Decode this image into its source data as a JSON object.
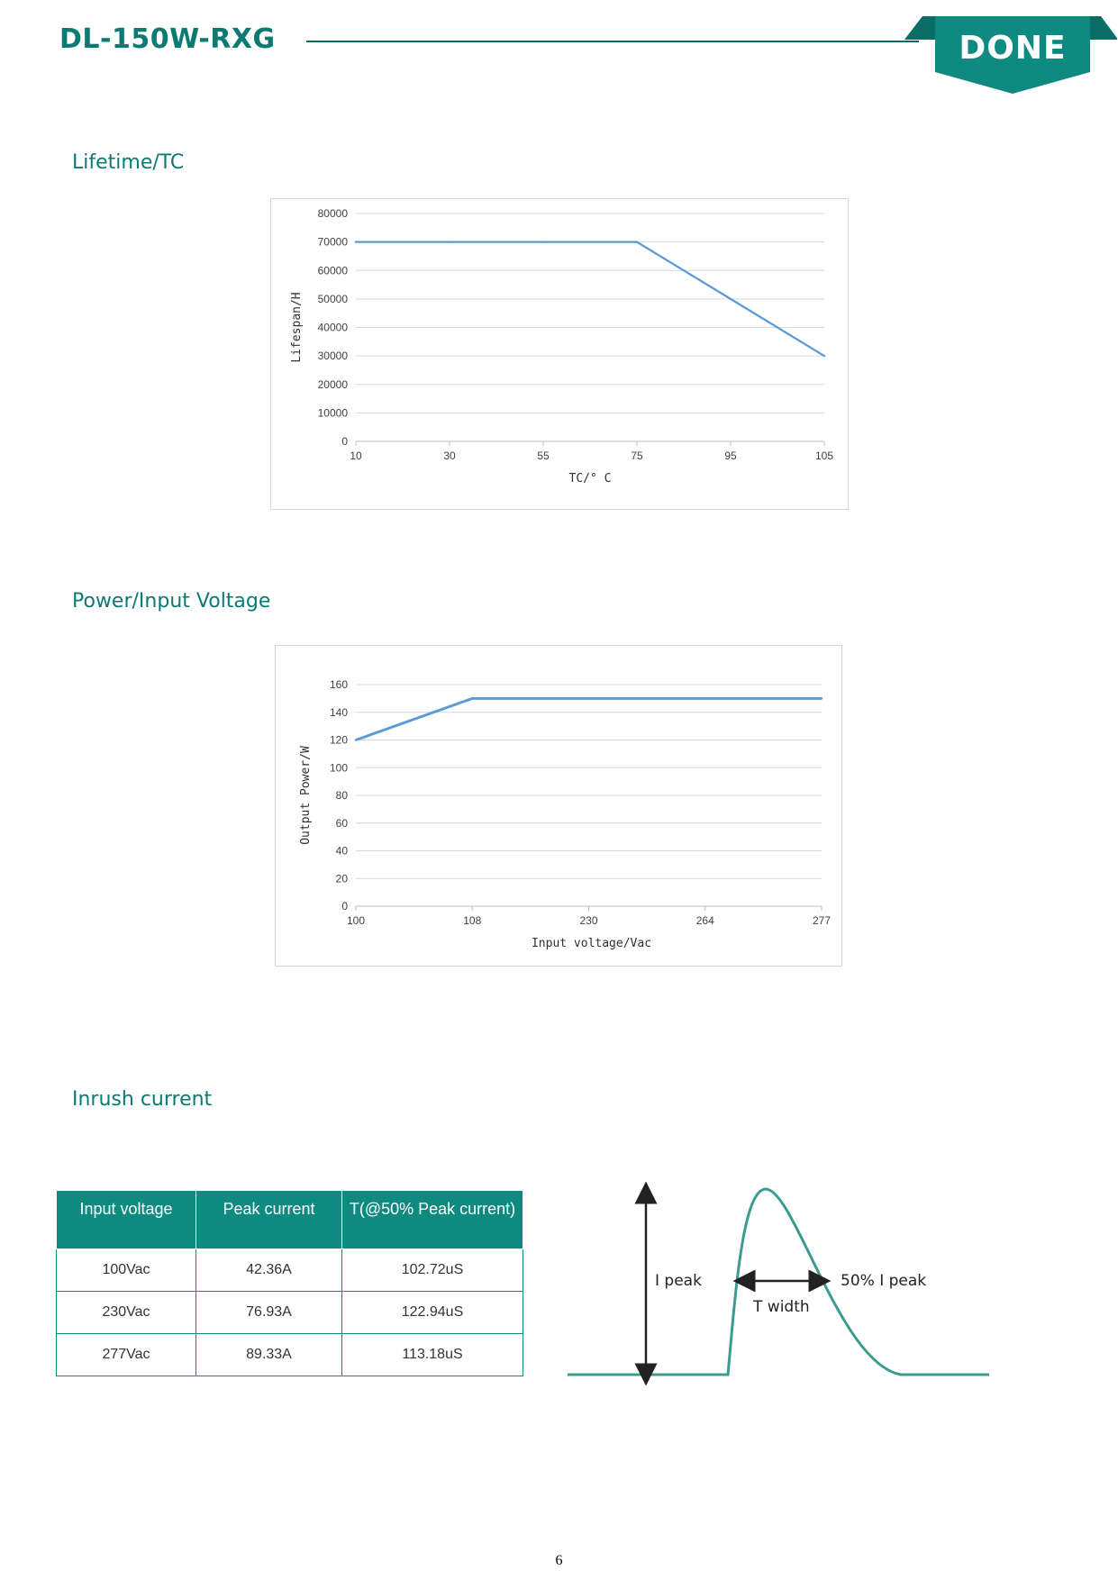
{
  "header": {
    "model": "DL-150W-RXG",
    "logo_text": "DONE",
    "brand_color": "#0e8a80"
  },
  "sections": {
    "lifetime": "Lifetime/TC",
    "power": "Power/Input Voltage",
    "inrush": "Inrush current"
  },
  "chart_data": [
    {
      "type": "line",
      "title": "",
      "xlabel": "TC/° C",
      "ylabel": "Lifespan/H",
      "categories": [
        "10",
        "30",
        "55",
        "75",
        "95",
        "105"
      ],
      "y_ticks": [
        "80000",
        "70000",
        "60000",
        "50000",
        "40000",
        "30000",
        "20000",
        "10000",
        "0"
      ],
      "ylim": [
        0,
        80000
      ],
      "series": [
        {
          "values": [
            70000,
            70000,
            70000,
            70000,
            50000,
            30000
          ]
        }
      ],
      "grid": true,
      "line_color": "#5b9bd5"
    },
    {
      "type": "line",
      "title": "",
      "xlabel": "Input voltage/Vac",
      "ylabel": "Output Power/W",
      "categories": [
        "100",
        "108",
        "230",
        "264",
        "277"
      ],
      "y_ticks": [
        "160",
        "140",
        "120",
        "100",
        "80",
        "60",
        "40",
        "20",
        "0"
      ],
      "ylim": [
        0,
        160
      ],
      "series": [
        {
          "values": [
            120,
            150,
            150,
            150,
            150
          ]
        }
      ],
      "grid": true,
      "line_color": "#5b9bd5"
    }
  ],
  "table": {
    "headers": [
      "Input voltage",
      "Peak current",
      "T(@50% Peak current)"
    ],
    "rows": [
      [
        "100Vac",
        "42.36A",
        "102.72uS"
      ],
      [
        "230Vac",
        "76.93A",
        "122.94uS"
      ],
      [
        "277Vac",
        "89.33A",
        "113.18uS"
      ]
    ]
  },
  "diagram": {
    "i_peak": "I peak",
    "half_peak": "50% I peak",
    "t_width": "T width",
    "curve_color": "#3a9b8f"
  },
  "footer": {
    "page_number": "6"
  }
}
